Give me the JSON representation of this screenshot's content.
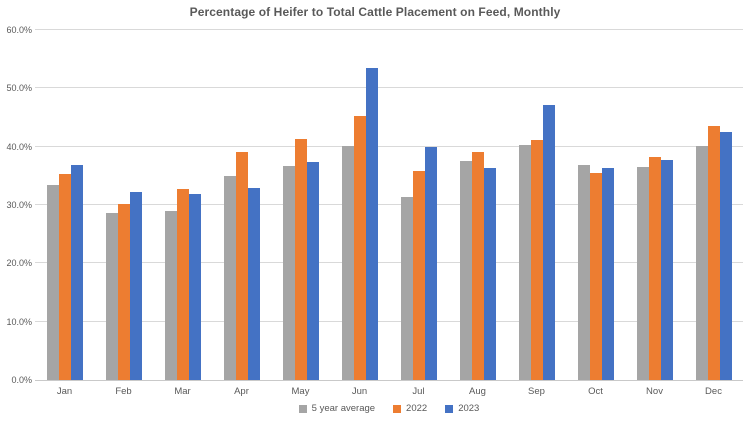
{
  "chart_data": {
    "type": "bar",
    "title": "Percentage of Heifer to Total Cattle Placement on Feed, Monthly",
    "categories": [
      "Jan",
      "Feb",
      "Mar",
      "Apr",
      "May",
      "Jun",
      "Jul",
      "Aug",
      "Sep",
      "Oct",
      "Nov",
      "Dec"
    ],
    "series": [
      {
        "name": "5 year average",
        "color": "#A5A5A5",
        "values": [
          33.4,
          28.6,
          28.9,
          35.0,
          36.7,
          40.1,
          31.4,
          37.6,
          40.3,
          36.9,
          36.6,
          40.2
        ]
      },
      {
        "name": "2022",
        "color": "#ED7D31",
        "values": [
          35.4,
          30.1,
          32.7,
          39.1,
          41.4,
          45.2,
          35.8,
          39.1,
          41.2,
          35.5,
          38.2,
          43.5
        ]
      },
      {
        "name": "2023",
        "color": "#4472C4",
        "values": [
          36.9,
          32.3,
          31.9,
          33.0,
          37.3,
          53.5,
          40.0,
          36.4,
          47.2,
          36.4,
          37.8,
          42.6
        ]
      }
    ],
    "ylim": [
      0,
      60
    ],
    "yticks": [
      "0.0%",
      "10.0%",
      "20.0%",
      "30.0%",
      "40.0%",
      "50.0%",
      "60.0%"
    ],
    "xlabel": "",
    "ylabel": "",
    "grid": true,
    "legend_position": "bottom"
  },
  "colors": {
    "text": "#595959",
    "gridline": "#D9D9D9",
    "axis_line": "#C9C9C9",
    "background": "#FFFFFF"
  }
}
